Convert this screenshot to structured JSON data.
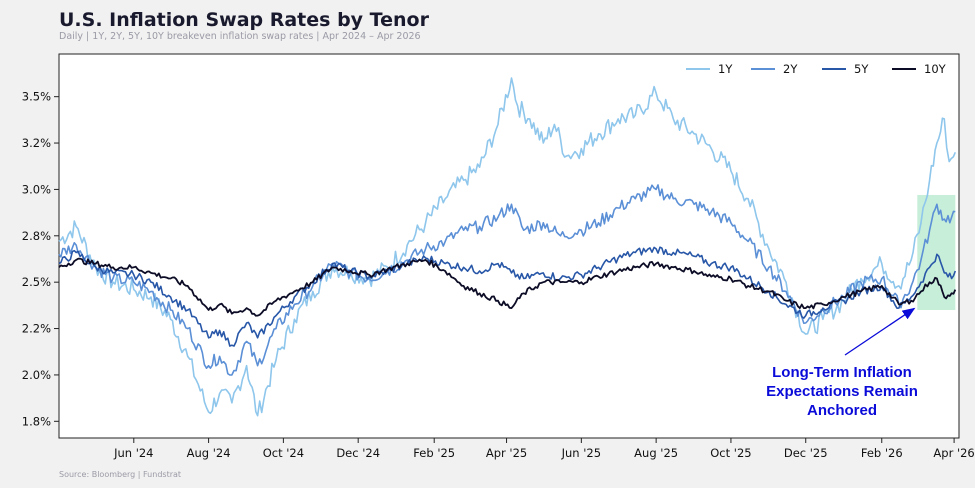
{
  "header": {
    "title": "U.S. Inflation Swap Rates by Tenor",
    "subtitle": "Daily  |  1Y, 2Y, 5Y, 10Y breakeven inflation swap rates  |  Apr 2024 – Apr 2026"
  },
  "footer": {
    "source": "Source: Bloomberg | Fundstrat"
  },
  "chart_data": {
    "type": "line",
    "x_axis": {
      "range": [
        "2024-04-01",
        "2026-04-05"
      ],
      "ticks": [
        {
          "date": "2024-06-01",
          "label": "Jun '24"
        },
        {
          "date": "2024-08-01",
          "label": "Aug '24"
        },
        {
          "date": "2024-10-01",
          "label": "Oct '24"
        },
        {
          "date": "2024-12-01",
          "label": "Dec '24"
        },
        {
          "date": "2025-02-01",
          "label": "Feb '25"
        },
        {
          "date": "2025-04-01",
          "label": "Apr '25"
        },
        {
          "date": "2025-06-01",
          "label": "Jun '25"
        },
        {
          "date": "2025-08-01",
          "label": "Aug '25"
        },
        {
          "date": "2025-10-01",
          "label": "Oct '25"
        },
        {
          "date": "2025-12-01",
          "label": "Dec '25"
        },
        {
          "date": "2026-02-01",
          "label": "Feb '26"
        },
        {
          "date": "2026-04-01",
          "label": "Apr '26"
        }
      ]
    },
    "y_axis": {
      "range": [
        1.66,
        3.73
      ],
      "ticks": [
        {
          "value": 1.75,
          "label": "1.8%"
        },
        {
          "value": 2.0,
          "label": "2.0%"
        },
        {
          "value": 2.25,
          "label": "2.2%"
        },
        {
          "value": 2.5,
          "label": "2.5%"
        },
        {
          "value": 2.75,
          "label": "2.8%"
        },
        {
          "value": 3.0,
          "label": "3.0%"
        },
        {
          "value": 3.25,
          "label": "3.2%"
        },
        {
          "value": 3.5,
          "label": "3.5%"
        }
      ]
    },
    "grid": false,
    "legend": "top-right",
    "series": [
      {
        "name": "1Y",
        "color": "#8ec6ec",
        "points": [
          [
            "2024-04-01",
            2.72
          ],
          [
            "2024-04-15",
            2.8
          ],
          [
            "2024-05-01",
            2.58
          ],
          [
            "2024-05-15",
            2.5
          ],
          [
            "2024-06-01",
            2.46
          ],
          [
            "2024-06-15",
            2.42
          ],
          [
            "2024-07-01",
            2.3
          ],
          [
            "2024-07-15",
            2.1
          ],
          [
            "2024-08-01",
            1.8
          ],
          [
            "2024-08-10",
            1.9
          ],
          [
            "2024-08-20",
            1.85
          ],
          [
            "2024-09-01",
            2.05
          ],
          [
            "2024-09-10",
            1.78
          ],
          [
            "2024-09-25",
            2.08
          ],
          [
            "2024-10-10",
            2.3
          ],
          [
            "2024-10-25",
            2.45
          ],
          [
            "2024-11-10",
            2.58
          ],
          [
            "2024-11-25",
            2.55
          ],
          [
            "2024-12-10",
            2.52
          ],
          [
            "2024-12-25",
            2.58
          ],
          [
            "2025-01-10",
            2.7
          ],
          [
            "2025-01-25",
            2.82
          ],
          [
            "2025-02-10",
            2.95
          ],
          [
            "2025-02-25",
            3.05
          ],
          [
            "2025-03-10",
            3.12
          ],
          [
            "2025-03-25",
            3.35
          ],
          [
            "2025-04-05",
            3.6
          ],
          [
            "2025-04-10",
            3.45
          ],
          [
            "2025-04-20",
            3.38
          ],
          [
            "2025-05-01",
            3.25
          ],
          [
            "2025-05-10",
            3.35
          ],
          [
            "2025-05-20",
            3.18
          ],
          [
            "2025-06-01",
            3.22
          ],
          [
            "2025-06-15",
            3.3
          ],
          [
            "2025-07-01",
            3.38
          ],
          [
            "2025-07-15",
            3.4
          ],
          [
            "2025-08-01",
            3.52
          ],
          [
            "2025-08-15",
            3.38
          ],
          [
            "2025-09-01",
            3.3
          ],
          [
            "2025-09-15",
            3.22
          ],
          [
            "2025-10-01",
            3.1
          ],
          [
            "2025-10-15",
            2.95
          ],
          [
            "2025-11-01",
            2.68
          ],
          [
            "2025-11-15",
            2.5
          ],
          [
            "2025-12-01",
            2.22
          ],
          [
            "2025-12-15",
            2.3
          ],
          [
            "2026-01-01",
            2.4
          ],
          [
            "2026-01-15",
            2.52
          ],
          [
            "2026-02-01",
            2.6
          ],
          [
            "2026-02-15",
            2.48
          ],
          [
            "2026-02-25",
            2.62
          ],
          [
            "2026-03-05",
            2.82
          ],
          [
            "2026-03-12",
            3.05
          ],
          [
            "2026-03-18",
            3.25
          ],
          [
            "2026-03-24",
            3.38
          ],
          [
            "2026-03-28",
            3.15
          ],
          [
            "2026-04-02",
            3.2
          ]
        ]
      },
      {
        "name": "2Y",
        "color": "#5b8fd6",
        "points": [
          [
            "2024-04-01",
            2.65
          ],
          [
            "2024-04-15",
            2.7
          ],
          [
            "2024-05-01",
            2.58
          ],
          [
            "2024-05-15",
            2.52
          ],
          [
            "2024-06-01",
            2.5
          ],
          [
            "2024-06-15",
            2.45
          ],
          [
            "2024-07-01",
            2.35
          ],
          [
            "2024-07-15",
            2.25
          ],
          [
            "2024-08-01",
            2.05
          ],
          [
            "2024-08-10",
            2.1
          ],
          [
            "2024-08-20",
            2.0
          ],
          [
            "2024-09-01",
            2.18
          ],
          [
            "2024-09-10",
            2.05
          ],
          [
            "2024-09-25",
            2.25
          ],
          [
            "2024-10-10",
            2.38
          ],
          [
            "2024-10-25",
            2.48
          ],
          [
            "2024-11-10",
            2.6
          ],
          [
            "2024-11-25",
            2.55
          ],
          [
            "2024-12-10",
            2.52
          ],
          [
            "2024-12-25",
            2.56
          ],
          [
            "2025-01-10",
            2.62
          ],
          [
            "2025-01-25",
            2.68
          ],
          [
            "2025-02-10",
            2.72
          ],
          [
            "2025-02-25",
            2.78
          ],
          [
            "2025-03-10",
            2.8
          ],
          [
            "2025-03-25",
            2.85
          ],
          [
            "2025-04-05",
            2.92
          ],
          [
            "2025-04-15",
            2.78
          ],
          [
            "2025-05-01",
            2.82
          ],
          [
            "2025-05-15",
            2.75
          ],
          [
            "2025-06-01",
            2.78
          ],
          [
            "2025-06-15",
            2.82
          ],
          [
            "2025-07-01",
            2.9
          ],
          [
            "2025-07-15",
            2.95
          ],
          [
            "2025-08-01",
            3.0
          ],
          [
            "2025-08-15",
            2.95
          ],
          [
            "2025-09-01",
            2.92
          ],
          [
            "2025-09-15",
            2.88
          ],
          [
            "2025-10-01",
            2.82
          ],
          [
            "2025-10-15",
            2.72
          ],
          [
            "2025-11-01",
            2.58
          ],
          [
            "2025-11-15",
            2.45
          ],
          [
            "2025-12-01",
            2.28
          ],
          [
            "2025-12-15",
            2.35
          ],
          [
            "2026-01-01",
            2.42
          ],
          [
            "2026-01-15",
            2.5
          ],
          [
            "2026-02-01",
            2.52
          ],
          [
            "2026-02-15",
            2.38
          ],
          [
            "2026-02-25",
            2.48
          ],
          [
            "2026-03-05",
            2.62
          ],
          [
            "2026-03-12",
            2.78
          ],
          [
            "2026-03-18",
            2.92
          ],
          [
            "2026-03-24",
            2.84
          ],
          [
            "2026-03-30",
            2.85
          ],
          [
            "2026-04-02",
            2.88
          ]
        ]
      },
      {
        "name": "5Y",
        "color": "#2857a8",
        "points": [
          [
            "2024-04-01",
            2.6
          ],
          [
            "2024-04-15",
            2.66
          ],
          [
            "2024-05-01",
            2.58
          ],
          [
            "2024-05-15",
            2.55
          ],
          [
            "2024-06-01",
            2.54
          ],
          [
            "2024-06-15",
            2.5
          ],
          [
            "2024-07-01",
            2.42
          ],
          [
            "2024-07-15",
            2.35
          ],
          [
            "2024-08-01",
            2.2
          ],
          [
            "2024-08-10",
            2.24
          ],
          [
            "2024-08-20",
            2.16
          ],
          [
            "2024-09-01",
            2.28
          ],
          [
            "2024-09-10",
            2.2
          ],
          [
            "2024-09-25",
            2.32
          ],
          [
            "2024-10-10",
            2.42
          ],
          [
            "2024-10-25",
            2.5
          ],
          [
            "2024-11-10",
            2.6
          ],
          [
            "2024-11-25",
            2.56
          ],
          [
            "2024-12-10",
            2.53
          ],
          [
            "2024-12-25",
            2.56
          ],
          [
            "2025-01-10",
            2.6
          ],
          [
            "2025-01-25",
            2.63
          ],
          [
            "2025-02-10",
            2.6
          ],
          [
            "2025-02-25",
            2.58
          ],
          [
            "2025-03-10",
            2.56
          ],
          [
            "2025-03-25",
            2.6
          ],
          [
            "2025-04-05",
            2.55
          ],
          [
            "2025-04-15",
            2.52
          ],
          [
            "2025-05-01",
            2.55
          ],
          [
            "2025-05-15",
            2.52
          ],
          [
            "2025-06-01",
            2.54
          ],
          [
            "2025-06-15",
            2.58
          ],
          [
            "2025-07-01",
            2.63
          ],
          [
            "2025-07-15",
            2.66
          ],
          [
            "2025-08-01",
            2.68
          ],
          [
            "2025-08-15",
            2.66
          ],
          [
            "2025-09-01",
            2.64
          ],
          [
            "2025-09-15",
            2.6
          ],
          [
            "2025-10-01",
            2.58
          ],
          [
            "2025-10-15",
            2.52
          ],
          [
            "2025-11-01",
            2.45
          ],
          [
            "2025-11-15",
            2.38
          ],
          [
            "2025-12-01",
            2.32
          ],
          [
            "2025-12-15",
            2.36
          ],
          [
            "2026-01-01",
            2.4
          ],
          [
            "2026-01-15",
            2.45
          ],
          [
            "2026-02-01",
            2.48
          ],
          [
            "2026-02-15",
            2.36
          ],
          [
            "2026-02-25",
            2.42
          ],
          [
            "2026-03-05",
            2.5
          ],
          [
            "2026-03-12",
            2.58
          ],
          [
            "2026-03-18",
            2.65
          ],
          [
            "2026-03-24",
            2.55
          ],
          [
            "2026-03-30",
            2.52
          ],
          [
            "2026-04-02",
            2.56
          ]
        ]
      },
      {
        "name": "10Y",
        "color": "#0c0c26",
        "points": [
          [
            "2024-04-01",
            2.58
          ],
          [
            "2024-04-15",
            2.62
          ],
          [
            "2024-05-01",
            2.6
          ],
          [
            "2024-05-15",
            2.58
          ],
          [
            "2024-06-01",
            2.58
          ],
          [
            "2024-06-15",
            2.55
          ],
          [
            "2024-07-01",
            2.52
          ],
          [
            "2024-07-15",
            2.48
          ],
          [
            "2024-08-01",
            2.35
          ],
          [
            "2024-08-10",
            2.38
          ],
          [
            "2024-08-20",
            2.33
          ],
          [
            "2024-09-01",
            2.36
          ],
          [
            "2024-09-10",
            2.32
          ],
          [
            "2024-09-25",
            2.4
          ],
          [
            "2024-10-10",
            2.45
          ],
          [
            "2024-10-25",
            2.5
          ],
          [
            "2024-11-10",
            2.58
          ],
          [
            "2024-11-25",
            2.56
          ],
          [
            "2024-12-10",
            2.54
          ],
          [
            "2024-12-25",
            2.57
          ],
          [
            "2025-01-10",
            2.6
          ],
          [
            "2025-01-25",
            2.62
          ],
          [
            "2025-02-10",
            2.56
          ],
          [
            "2025-02-25",
            2.48
          ],
          [
            "2025-03-10",
            2.44
          ],
          [
            "2025-03-25",
            2.4
          ],
          [
            "2025-04-05",
            2.36
          ],
          [
            "2025-04-15",
            2.44
          ],
          [
            "2025-05-01",
            2.5
          ],
          [
            "2025-05-15",
            2.5
          ],
          [
            "2025-06-01",
            2.5
          ],
          [
            "2025-06-15",
            2.53
          ],
          [
            "2025-07-01",
            2.56
          ],
          [
            "2025-07-15",
            2.58
          ],
          [
            "2025-08-01",
            2.6
          ],
          [
            "2025-08-15",
            2.58
          ],
          [
            "2025-09-01",
            2.56
          ],
          [
            "2025-09-15",
            2.53
          ],
          [
            "2025-10-01",
            2.52
          ],
          [
            "2025-10-15",
            2.48
          ],
          [
            "2025-11-01",
            2.45
          ],
          [
            "2025-11-15",
            2.4
          ],
          [
            "2025-12-01",
            2.36
          ],
          [
            "2025-12-15",
            2.38
          ],
          [
            "2026-01-01",
            2.42
          ],
          [
            "2026-01-15",
            2.45
          ],
          [
            "2026-02-01",
            2.48
          ],
          [
            "2026-02-15",
            2.38
          ],
          [
            "2026-02-25",
            2.4
          ],
          [
            "2026-03-05",
            2.45
          ],
          [
            "2026-03-12",
            2.5
          ],
          [
            "2026-03-18",
            2.52
          ],
          [
            "2026-03-24",
            2.42
          ],
          [
            "2026-03-30",
            2.44
          ],
          [
            "2026-04-02",
            2.46
          ]
        ]
      }
    ],
    "highlight_region": {
      "x": [
        "2026-03-02",
        "2026-04-02"
      ],
      "y": [
        2.35,
        2.97
      ],
      "color": "#b9ead0"
    },
    "annotation": {
      "lines": [
        "Long-Term Inflation",
        "Expectations Remain",
        "Anchored"
      ],
      "arrow_to": [
        "2026-03-02",
        2.38
      ],
      "color": "#0b0bd9"
    }
  }
}
